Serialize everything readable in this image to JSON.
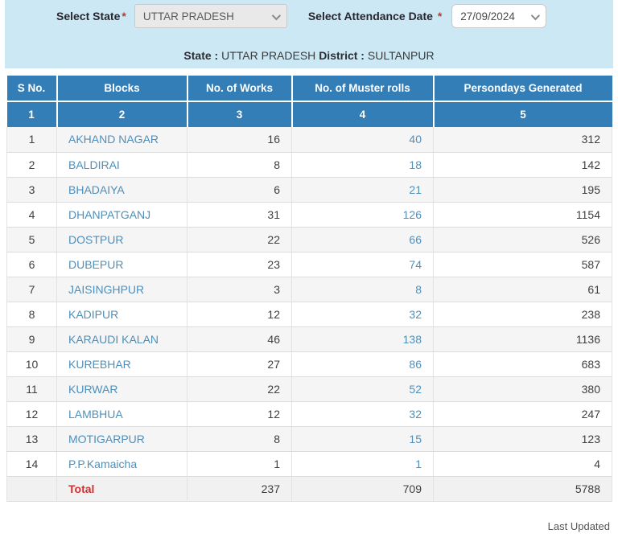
{
  "filters": {
    "state_label": "Select State",
    "state_required": "*",
    "state_value": "UTTAR PRADESH",
    "date_label": "Select Attendance Date",
    "date_required": "*",
    "date_value": "27/09/2024"
  },
  "subheader": {
    "state_label": "State :",
    "state_value": "UTTAR PRADESH",
    "district_label": "District :",
    "district_value": "SULTANPUR"
  },
  "table": {
    "columns": [
      "S No.",
      "Blocks",
      "No. of Works",
      "No. of Muster rolls",
      "Persondays Generated"
    ],
    "column_numbers": [
      "1",
      "2",
      "3",
      "4",
      "5"
    ],
    "rows": [
      {
        "s_no": "1",
        "block": "AKHAND NAGAR",
        "works": "16",
        "muster_rolls": "40",
        "persondays": "312"
      },
      {
        "s_no": "2",
        "block": "BALDIRAI",
        "works": "8",
        "muster_rolls": "18",
        "persondays": "142"
      },
      {
        "s_no": "3",
        "block": "BHADAIYA",
        "works": "6",
        "muster_rolls": "21",
        "persondays": "195"
      },
      {
        "s_no": "4",
        "block": "DHANPATGANJ",
        "works": "31",
        "muster_rolls": "126",
        "persondays": "1154"
      },
      {
        "s_no": "5",
        "block": "DOSTPUR",
        "works": "22",
        "muster_rolls": "66",
        "persondays": "526"
      },
      {
        "s_no": "6",
        "block": "DUBEPUR",
        "works": "23",
        "muster_rolls": "74",
        "persondays": "587"
      },
      {
        "s_no": "7",
        "block": "JAISINGHPUR",
        "works": "3",
        "muster_rolls": "8",
        "persondays": "61"
      },
      {
        "s_no": "8",
        "block": "KADIPUR",
        "works": "12",
        "muster_rolls": "32",
        "persondays": "238"
      },
      {
        "s_no": "9",
        "block": "KARAUDI KALAN",
        "works": "46",
        "muster_rolls": "138",
        "persondays": "1136"
      },
      {
        "s_no": "10",
        "block": "KUREBHAR",
        "works": "27",
        "muster_rolls": "86",
        "persondays": "683"
      },
      {
        "s_no": "11",
        "block": "KURWAR",
        "works": "22",
        "muster_rolls": "52",
        "persondays": "380"
      },
      {
        "s_no": "12",
        "block": "LAMBHUA",
        "works": "12",
        "muster_rolls": "32",
        "persondays": "247"
      },
      {
        "s_no": "13",
        "block": "MOTIGARPUR",
        "works": "8",
        "muster_rolls": "15",
        "persondays": "123"
      },
      {
        "s_no": "14",
        "block": "P.P.Kamaicha",
        "works": "1",
        "muster_rolls": "1",
        "persondays": "4"
      }
    ],
    "total": {
      "label": "Total",
      "works": "237",
      "muster_rolls": "709",
      "persondays": "5788"
    }
  },
  "footer": {
    "last_updated": "Last Updated"
  },
  "colors": {
    "band_bg": "#cde8f5",
    "header_bg": "#347eb8",
    "link_blue": "#4f8fba",
    "total_red": "#d03030"
  }
}
